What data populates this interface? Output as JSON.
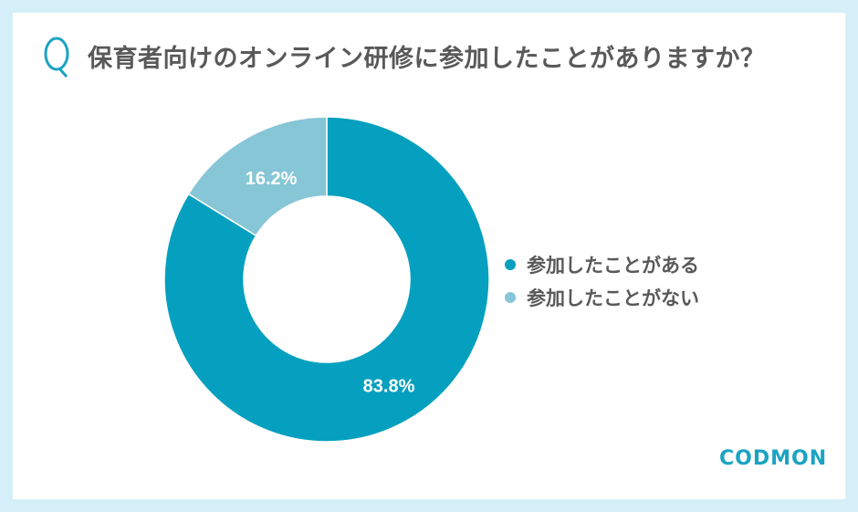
{
  "title": "保育者向けのオンライン研修に参加したことがありますか？",
  "logo_text": "CODMON",
  "chart_data": {
    "type": "pie",
    "donut": true,
    "title": "保育者向けのオンライン研修に参加したことがありますか？",
    "categories": [
      "参加したことがある",
      "参加したことがない"
    ],
    "values": [
      83.8,
      16.2
    ],
    "labels": [
      "83.8%",
      "16.2%"
    ],
    "colors": [
      "#05a0bf",
      "#86c6d7"
    ],
    "legend_position": "right"
  }
}
